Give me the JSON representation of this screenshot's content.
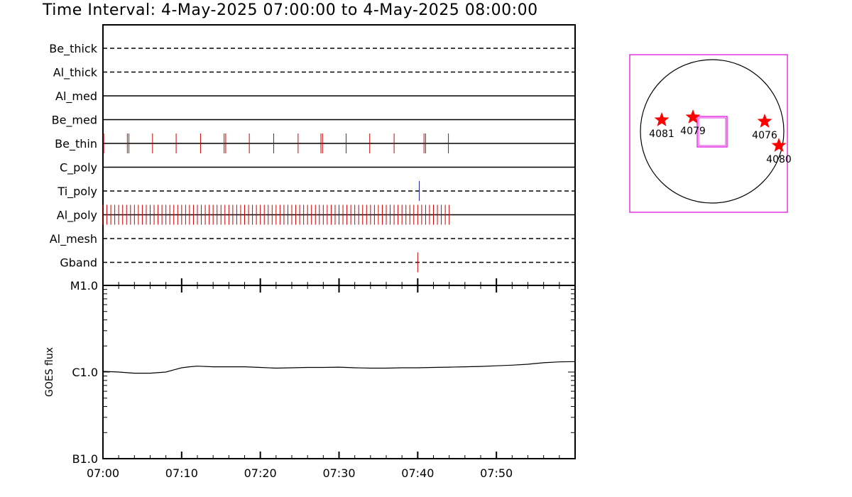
{
  "title": "Time Interval:  4-May-2025 07:00:00 to  4-May-2025 08:00:00",
  "chart_data": [
    {
      "type": "scatter",
      "x_axis": {
        "ticks": [
          "07:00",
          "07:10",
          "07:20",
          "07:30",
          "07:40",
          "07:50"
        ],
        "range_min": [
          0,
          60
        ]
      },
      "rows": [
        {
          "name": "Be_thick",
          "line": "dashed",
          "events": []
        },
        {
          "name": "Al_thick",
          "line": "dashed",
          "events": []
        },
        {
          "name": "Al_med",
          "line": "solid",
          "events": []
        },
        {
          "name": "Be_med",
          "line": "solid",
          "events": []
        },
        {
          "name": "Be_thin",
          "line": "solid",
          "color": "#d00000",
          "events": [
            0.1,
            3.1,
            3.3,
            6.3,
            9.3,
            12.4,
            15.4,
            15.6,
            18.6,
            21.7,
            24.8,
            27.7,
            27.9,
            30.9,
            33.9,
            37.0,
            40.8,
            41.0,
            43.9
          ]
        },
        {
          "name": "C_poly",
          "line": "solid",
          "events": []
        },
        {
          "name": "Ti_poly",
          "line": "dashed",
          "color": "#2020a0",
          "events": [
            40.2
          ]
        },
        {
          "name": "Al_poly",
          "line": "solid",
          "color": "#d00000",
          "dense_range": [
            0,
            44
          ],
          "step": 0.5
        },
        {
          "name": "Al_mesh",
          "line": "dashed",
          "events": []
        },
        {
          "name": "Gband",
          "line": "dashed",
          "color": "#d00000",
          "events": [
            40.0
          ]
        }
      ]
    },
    {
      "type": "line",
      "ylabel": "GOES flux",
      "y_ticks": [
        "M1.0",
        "C1.0",
        "B1.0"
      ],
      "y_scale": "log",
      "ylim": [
        "B1.0",
        "M1.0"
      ],
      "x": [
        0,
        2,
        4,
        6,
        8,
        9,
        10,
        11,
        12,
        14,
        16,
        18,
        20,
        22,
        24,
        26,
        28,
        30,
        32,
        34,
        36,
        38,
        40,
        42,
        44,
        46,
        48,
        50,
        52,
        54,
        56,
        58,
        60
      ],
      "y_flux": [
        1.02e-06,
        1e-06,
        9.7e-07,
        9.7e-07,
        1e-06,
        1.06e-06,
        1.12e-06,
        1.15e-06,
        1.17e-06,
        1.15e-06,
        1.15e-06,
        1.15e-06,
        1.13e-06,
        1.11e-06,
        1.12e-06,
        1.13e-06,
        1.13e-06,
        1.14e-06,
        1.12e-06,
        1.11e-06,
        1.11e-06,
        1.12e-06,
        1.12e-06,
        1.13e-06,
        1.14e-06,
        1.15e-06,
        1.16e-06,
        1.18e-06,
        1.2e-06,
        1.23e-06,
        1.28e-06,
        1.31e-06,
        1.32e-06
      ]
    }
  ],
  "solar_map": {
    "frame_color": "#e000e0",
    "regions": [
      {
        "label": "4081"
      },
      {
        "label": "4079"
      },
      {
        "label": "4076"
      },
      {
        "label": "4080"
      }
    ]
  }
}
